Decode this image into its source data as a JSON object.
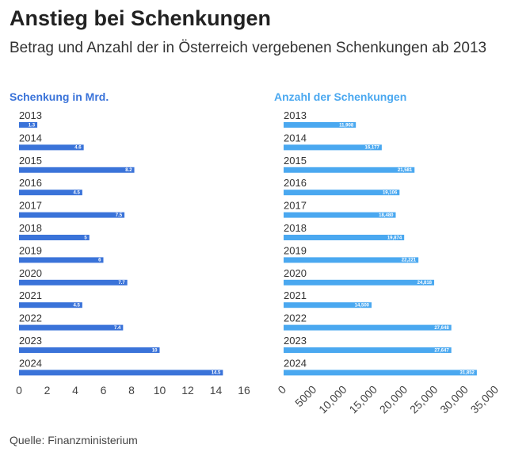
{
  "title": "Anstieg bei Schenkungen",
  "subtitle": "Betrag und Anzahl der in Österreich vergebenen Schenkungen ab 2013",
  "source": "Quelle: Finanzministerium",
  "chart_data": [
    {
      "type": "bar",
      "orientation": "horizontal",
      "title": "Schenkung in Mrd.",
      "color": "#3a73d9",
      "categories": [
        "2013",
        "2014",
        "2015",
        "2016",
        "2017",
        "2018",
        "2019",
        "2020",
        "2021",
        "2022",
        "2023",
        "2024"
      ],
      "values": [
        1.3,
        4.6,
        8.2,
        4.5,
        7.5,
        5,
        6,
        7.7,
        4.5,
        7.4,
        10,
        14.5
      ],
      "value_labels": [
        "1.3",
        "4.6",
        "8.2",
        "4.5",
        "7.5",
        "5",
        "6",
        "7.7",
        "4.5",
        "7.4",
        "10",
        "14.5"
      ],
      "xlim": [
        0,
        16
      ],
      "xticks": [
        0,
        2,
        4,
        6,
        8,
        10,
        12,
        14,
        16
      ],
      "xtick_labels": [
        "0",
        "2",
        "4",
        "6",
        "8",
        "10",
        "12",
        "14",
        "16"
      ]
    },
    {
      "type": "bar",
      "orientation": "horizontal",
      "title": "Anzahl der Schenkungen",
      "color": "#4aa8f0",
      "categories": [
        "2013",
        "2014",
        "2015",
        "2016",
        "2017",
        "2018",
        "2019",
        "2020",
        "2021",
        "2022",
        "2023",
        "2024"
      ],
      "values": [
        11908,
        16177,
        21581,
        19106,
        18480,
        19874,
        22221,
        24818,
        14500,
        27648,
        27647,
        31852
      ],
      "value_labels": [
        "11,908",
        "16,177",
        "21,581",
        "19,106",
        "18,480",
        "19,874",
        "22,221",
        "24,818",
        "14,500",
        "27,648",
        "27,647",
        "31,852"
      ],
      "xlim": [
        0,
        35000
      ],
      "xticks": [
        0,
        5000,
        10000,
        15000,
        20000,
        25000,
        30000,
        35000
      ],
      "xtick_labels": [
        "0",
        "5000",
        "10,000",
        "15,000",
        "20,000",
        "25,000",
        "30,000",
        "35,000"
      ]
    }
  ]
}
